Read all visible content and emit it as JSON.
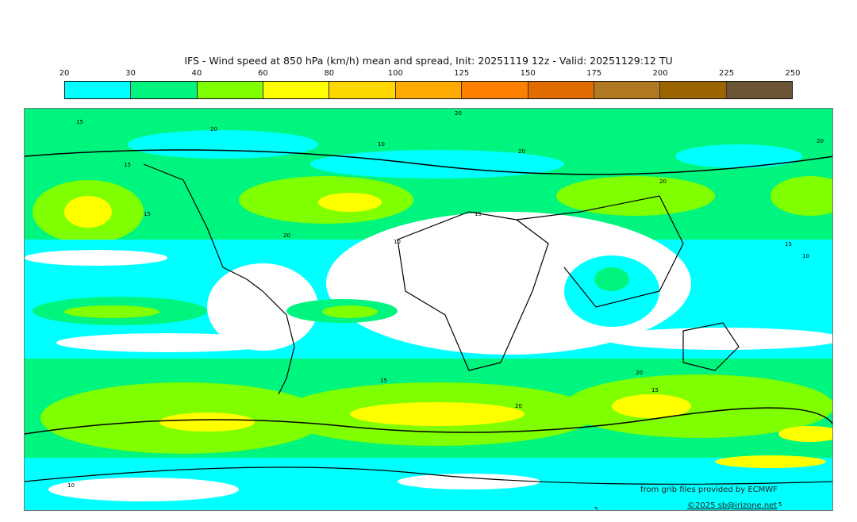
{
  "title": "IFS - Wind speed at 850 hPa (km/h) mean and spread, Init: 20251119 12z - Valid: 20251129:12 TU",
  "colorbar": {
    "ticks": [
      "20",
      "30",
      "40",
      "60",
      "80",
      "100",
      "125",
      "150",
      "175",
      "200",
      "225",
      "250"
    ],
    "colors": [
      "#00ffff",
      "#00f57f",
      "#7fff00",
      "#ffff00",
      "#ffd700",
      "#ffaa00",
      "#ff8000",
      "#e06c00",
      "#b07820",
      "#9c6400",
      "#6b5535"
    ]
  },
  "contour_labels": [
    "15",
    "20",
    "20",
    "15",
    "10",
    "20",
    "20",
    "20",
    "15",
    "10",
    "20",
    "15",
    "10",
    "15",
    "20",
    "15",
    "20",
    "15",
    "10",
    "5",
    "5"
  ],
  "credits": {
    "source": "from grib files provided by ECMWF",
    "copyright": "©2025 sb@irizone.net"
  }
}
